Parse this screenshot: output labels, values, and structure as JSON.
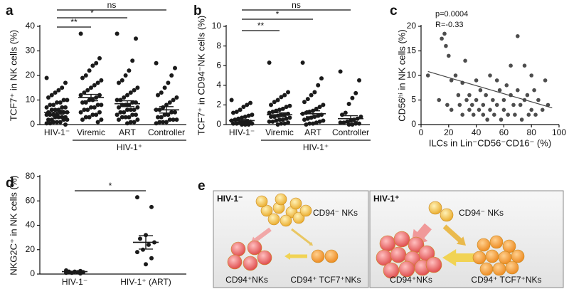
{
  "chart_data": [
    {
      "type": "dot",
      "panel": "a",
      "ylabel": "TCF7⁺ in NK cells (%)",
      "categories": [
        "HIV-1⁻",
        "Viremic",
        "ART",
        "Controller"
      ],
      "group_label": "HIV-1⁺",
      "significance": [
        "**",
        "*",
        "ns"
      ],
      "color": "#1a1a1a",
      "ylim": [
        0,
        40
      ],
      "yticks": [
        0,
        10,
        20,
        30,
        40
      ],
      "groups": [
        {
          "values": [
            19,
            17,
            15,
            14,
            13,
            12,
            11,
            10,
            10,
            9,
            9,
            8,
            8,
            7,
            7,
            7,
            6,
            6,
            6,
            5,
            5,
            5,
            5,
            4,
            4,
            4,
            4,
            3,
            3,
            3,
            3,
            2,
            2,
            2,
            2,
            1,
            1,
            1,
            0.5,
            0.5,
            0
          ],
          "mean": 5,
          "sem": 0.8
        },
        {
          "values": [
            37,
            27,
            25,
            24,
            22,
            20,
            19,
            18,
            17,
            16,
            15,
            14,
            13,
            12,
            12,
            11,
            10,
            10,
            9,
            9,
            8,
            8,
            7,
            7,
            6,
            6,
            5,
            5,
            4,
            4,
            3,
            3,
            2,
            2,
            1
          ],
          "mean": 11,
          "sem": 1.3
        },
        {
          "values": [
            37,
            35,
            26,
            22,
            20,
            18,
            17,
            15,
            14,
            13,
            12,
            11,
            10,
            10,
            9,
            9,
            8,
            8,
            8,
            7,
            7,
            6,
            6,
            6,
            5,
            5,
            4,
            4,
            4,
            3,
            3,
            3,
            2,
            2,
            1,
            1,
            0.5
          ],
          "mean": 8.5,
          "sem": 1.2
        },
        {
          "values": [
            25,
            23,
            20,
            17,
            15,
            13,
            12,
            11,
            10,
            9,
            8,
            7,
            6,
            6,
            5,
            5,
            4,
            4,
            3,
            3,
            2,
            2,
            2,
            1,
            1,
            1,
            0.5
          ],
          "mean": 6,
          "sem": 1.3
        }
      ]
    },
    {
      "type": "dot",
      "panel": "b",
      "ylabel": "TCF7⁺ in CD94⁻NK cells (%)",
      "categories": [
        "HIV-1⁻",
        "Viremic",
        "ART",
        "Controller"
      ],
      "group_label": "HIV-1⁺",
      "significance": [
        "**",
        "*",
        "ns"
      ],
      "color": "#1a1a1a",
      "ylim": [
        0,
        10
      ],
      "yticks": [
        0,
        2,
        4,
        6,
        8,
        10
      ],
      "groups": [
        {
          "values": [
            2.5,
            2.2,
            2.0,
            1.8,
            1.5,
            1.3,
            1.2,
            1.0,
            0.9,
            0.8,
            0.7,
            0.6,
            0.5,
            0.4,
            0.3,
            0.3,
            0.2,
            0.2,
            0.1,
            0.1,
            0.1,
            0,
            0,
            0
          ],
          "mean": 0.4,
          "sem": 0.12
        },
        {
          "values": [
            6.3,
            3.3,
            3.0,
            2.8,
            2.5,
            2.3,
            2.0,
            1.9,
            1.8,
            1.6,
            1.5,
            1.4,
            1.3,
            1.2,
            1.1,
            1.0,
            1.0,
            0.9,
            0.8,
            0.8,
            0.7,
            0.6,
            0.5,
            0.5,
            0.4,
            0.3,
            0.3,
            0.2,
            0.1,
            0.1,
            0
          ],
          "mean": 1.0,
          "sem": 0.2
        },
        {
          "values": [
            6.3,
            4.7,
            4.0,
            3.3,
            3.0,
            2.6,
            2.3,
            2.0,
            1.8,
            1.6,
            1.4,
            1.3,
            1.2,
            1.1,
            1.0,
            0.9,
            0.8,
            0.7,
            0.6,
            0.5,
            0.4,
            0.3,
            0.2,
            0.1,
            0.1,
            0
          ],
          "mean": 1.1,
          "sem": 0.3
        },
        {
          "values": [
            5.4,
            4.5,
            3.2,
            2.7,
            2.1,
            1.2,
            1.0,
            0.8,
            0.6,
            0.5,
            0.4,
            0.3,
            0.2,
            0.2,
            0.1,
            0.1,
            0,
            0
          ],
          "mean": 0.6,
          "sem": 0.3
        }
      ]
    },
    {
      "type": "scatter",
      "panel": "c",
      "xlabel": "ILCs in Lin⁻CD56⁻CD16⁻ (%)",
      "ylabel": "CD56ʰⁱ in NK cells (%)",
      "annotations": [
        "p=0.0004",
        "R=-0.33"
      ],
      "color": "#4d4d4d",
      "xlim": [
        0,
        100
      ],
      "xticks": [
        0,
        20,
        40,
        60,
        80,
        100
      ],
      "ylim": [
        0,
        20
      ],
      "yticks": [
        0,
        5,
        10,
        15,
        20
      ],
      "x": [
        5,
        13,
        15,
        18,
        20,
        22,
        25,
        27,
        28,
        30,
        30,
        32,
        33,
        35,
        35,
        37,
        38,
        40,
        40,
        42,
        43,
        45,
        45,
        47,
        48,
        50,
        50,
        52,
        53,
        55,
        55,
        57,
        58,
        60,
        60,
        62,
        63,
        65,
        65,
        67,
        68,
        70,
        70,
        72,
        73,
        75,
        75,
        77,
        78,
        80,
        80,
        82,
        83,
        85,
        88,
        90,
        92,
        17,
        19,
        22
      ],
      "y": [
        10,
        5,
        17.5,
        16,
        14,
        9,
        10,
        6,
        4,
        8.5,
        2,
        13,
        5,
        6,
        3,
        4,
        2,
        5,
        9,
        3,
        7,
        4,
        2,
        6,
        1,
        10,
        3,
        5,
        2,
        9,
        4,
        7,
        1,
        5,
        3,
        8,
        2,
        12,
        6,
        4,
        2,
        18,
        7,
        4,
        1,
        12,
        5,
        6,
        2,
        10,
        3,
        7,
        2,
        5,
        3,
        9,
        4,
        18.5,
        4,
        3
      ],
      "fit_line": {
        "x": [
          5,
          95
        ],
        "y": [
          10.8,
          3.4
        ]
      }
    },
    {
      "type": "dot",
      "panel": "d",
      "ylabel": "NKG2C⁺ in NK cells (%)",
      "categories": [
        "HIV-1⁻",
        "HIV-1⁺ (ART)"
      ],
      "significance": [
        "*"
      ],
      "color": "#1a1a1a",
      "ylim": [
        0,
        80
      ],
      "yticks": [
        0,
        20,
        40,
        60,
        80
      ],
      "groups": [
        {
          "values": [
            3,
            2.5,
            2,
            2,
            1.5,
            1.5,
            1,
            1,
            0.5
          ],
          "mean": 2,
          "sem": 0.3
        },
        {
          "values": [
            63,
            55,
            32,
            29,
            26,
            24,
            20,
            18,
            13,
            8
          ],
          "mean": 26,
          "sem": 5.5
        }
      ]
    }
  ],
  "diagram": {
    "panel": "e",
    "left": {
      "title": "HIV-1⁻",
      "source": "CD94⁻ NKs",
      "target1": "CD94⁺NKs",
      "target2": "CD94⁺ TCF7⁺NKs"
    },
    "right": {
      "title": "HIV-1⁺",
      "source": "CD94⁻ NKs",
      "target1": "CD94⁺NKs",
      "target2": "CD94⁺ TCF7⁺NKs"
    }
  }
}
